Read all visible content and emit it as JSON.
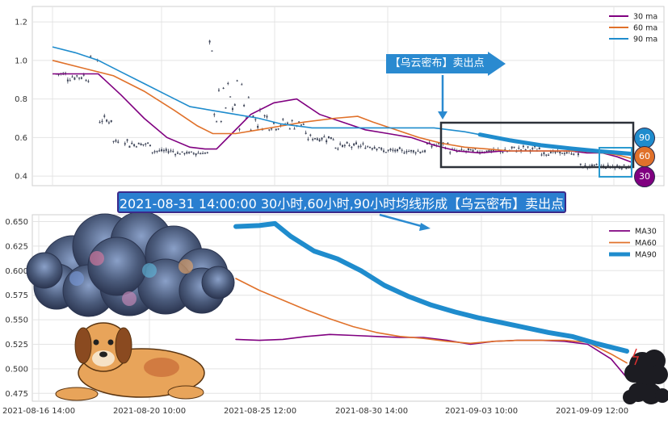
{
  "colors": {
    "ma30": "#800080",
    "ma60": "#e0712a",
    "ma90": "#1f8ccd",
    "candle": "#3d4457",
    "box": "#2d3139",
    "annotation": "#2a7fd0"
  },
  "annotation": {
    "signal_tag": "【乌云密布】卖出点",
    "banner": "2021-08-31 14:00:00 30小时,60小时,90小时均线形成【乌云密布】卖出点",
    "badge_90": "90",
    "badge_60": "60",
    "badge_30": "30"
  },
  "decorations": [
    "cloud-illustration",
    "dog-illustration",
    "storm-cloud-icon"
  ],
  "chart_data": [
    {
      "type": "line",
      "panel": "top",
      "description_series": "hourly candlesticks with moving averages",
      "y_ticks": [
        "0.4",
        "0.6",
        "0.8",
        "1.0",
        "1.2"
      ],
      "ylim": [
        0.35,
        1.28
      ],
      "x_index_range": [
        0,
        760
      ],
      "grid": true,
      "legend_position": "top-right",
      "legend": [
        "30 ma",
        "60 ma",
        "90 ma"
      ],
      "series": [
        {
          "name": "30 ma",
          "x": [
            0,
            30,
            60,
            90,
            120,
            150,
            180,
            200,
            215,
            235,
            260,
            290,
            320,
            350,
            380,
            410,
            440,
            470,
            500,
            530,
            560,
            590,
            620,
            650,
            680,
            700,
            720,
            740,
            760
          ],
          "values": [
            0.93,
            0.93,
            0.93,
            0.82,
            0.7,
            0.6,
            0.55,
            0.54,
            0.54,
            0.62,
            0.72,
            0.78,
            0.8,
            0.72,
            0.68,
            0.64,
            0.62,
            0.6,
            0.56,
            0.53,
            0.52,
            0.53,
            0.53,
            0.53,
            0.53,
            0.52,
            0.52,
            0.5,
            0.47
          ]
        },
        {
          "name": "60 ma",
          "x": [
            0,
            40,
            80,
            120,
            160,
            190,
            210,
            240,
            270,
            300,
            330,
            370,
            400,
            420,
            450,
            480,
            510,
            540,
            570,
            600,
            630,
            660,
            690,
            720,
            740,
            760
          ],
          "values": [
            1.0,
            0.96,
            0.92,
            0.84,
            0.74,
            0.66,
            0.62,
            0.62,
            0.64,
            0.66,
            0.68,
            0.7,
            0.71,
            0.68,
            0.64,
            0.6,
            0.57,
            0.55,
            0.54,
            0.53,
            0.53,
            0.53,
            0.53,
            0.52,
            0.51,
            0.49
          ]
        },
        {
          "name": "90 ma",
          "x": [
            0,
            30,
            60,
            90,
            120,
            150,
            180,
            210,
            240,
            270,
            300,
            340,
            380,
            420,
            460,
            500,
            540,
            580,
            620,
            660,
            700,
            740,
            760
          ],
          "values": [
            1.07,
            1.04,
            1.0,
            0.94,
            0.88,
            0.82,
            0.76,
            0.74,
            0.72,
            0.7,
            0.67,
            0.65,
            0.65,
            0.65,
            0.65,
            0.65,
            0.63,
            0.6,
            0.57,
            0.55,
            0.535,
            0.52,
            0.515
          ]
        }
      ],
      "sell_index": 495
    },
    {
      "type": "line",
      "panel": "bottom",
      "y_ticks": [
        "0.475",
        "0.500",
        "0.525",
        "0.550",
        "0.575",
        "0.600",
        "0.625",
        "0.650"
      ],
      "ylim": [
        0.467,
        0.657
      ],
      "x_tick_labels": [
        "2021-08-16 14:00",
        "2021-08-20 10:00",
        "2021-08-25 12:00",
        "2021-08-30 14:00",
        "2021-09-03 10:00",
        "2021-09-09 12:00"
      ],
      "grid": true,
      "legend_position": "top-right",
      "legend": [
        "MA30",
        "MA60",
        "MA90"
      ],
      "x_range": [
        0,
        100
      ],
      "series": [
        {
          "name": "MA30",
          "x": [
            0,
            6,
            12,
            18,
            24,
            30,
            36,
            42,
            48,
            54,
            60,
            66,
            72,
            78,
            84,
            90,
            96,
            100
          ],
          "values": [
            0.53,
            0.529,
            0.53,
            0.533,
            0.535,
            0.534,
            0.533,
            0.532,
            0.532,
            0.529,
            0.525,
            0.528,
            0.529,
            0.529,
            0.528,
            0.525,
            0.51,
            0.491
          ]
        },
        {
          "name": "MA60",
          "x": [
            0,
            6,
            12,
            18,
            24,
            30,
            36,
            42,
            48,
            54,
            60,
            66,
            72,
            78,
            84,
            90,
            96,
            100
          ],
          "values": [
            0.592,
            0.58,
            0.57,
            0.56,
            0.551,
            0.543,
            0.537,
            0.533,
            0.531,
            0.528,
            0.526,
            0.528,
            0.529,
            0.529,
            0.529,
            0.527,
            0.515,
            0.506
          ]
        },
        {
          "name": "MA90",
          "x": [
            0,
            6,
            10,
            14,
            20,
            26,
            32,
            38,
            44,
            50,
            56,
            62,
            68,
            74,
            80,
            86,
            92,
            100
          ],
          "values": [
            0.645,
            0.646,
            0.648,
            0.635,
            0.62,
            0.612,
            0.6,
            0.585,
            0.574,
            0.565,
            0.558,
            0.552,
            0.547,
            0.542,
            0.537,
            0.533,
            0.526,
            0.518
          ]
        }
      ]
    }
  ]
}
